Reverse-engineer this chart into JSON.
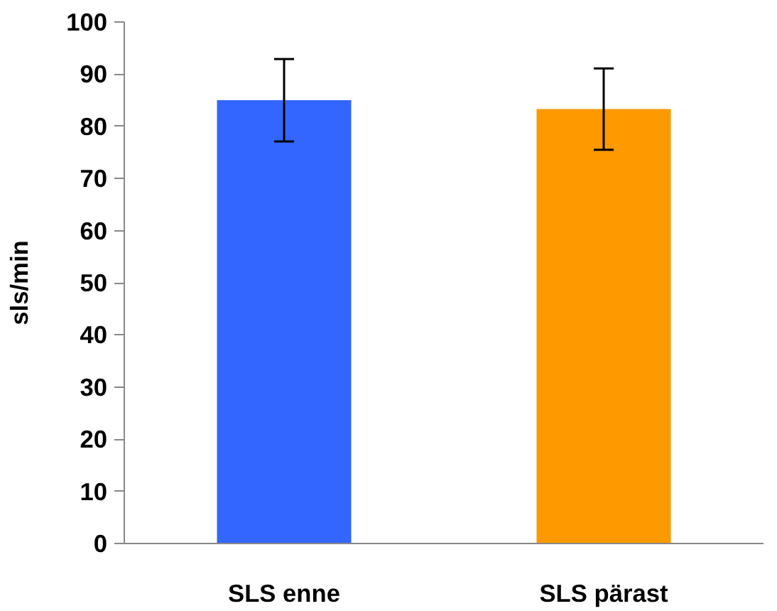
{
  "chart_data": {
    "type": "bar",
    "ylabel": "sls/min",
    "categories": [
      "SLS enne",
      "SLS pärast"
    ],
    "values": [
      85.0,
      83.3
    ],
    "colors": [
      "#3366ff",
      "#ff9900"
    ],
    "errors": [
      7.9,
      7.8
    ],
    "ylim": [
      0,
      100
    ],
    "yticks": [
      0,
      10,
      20,
      30,
      40,
      50,
      60,
      70,
      80,
      90,
      100
    ],
    "grid": false
  }
}
